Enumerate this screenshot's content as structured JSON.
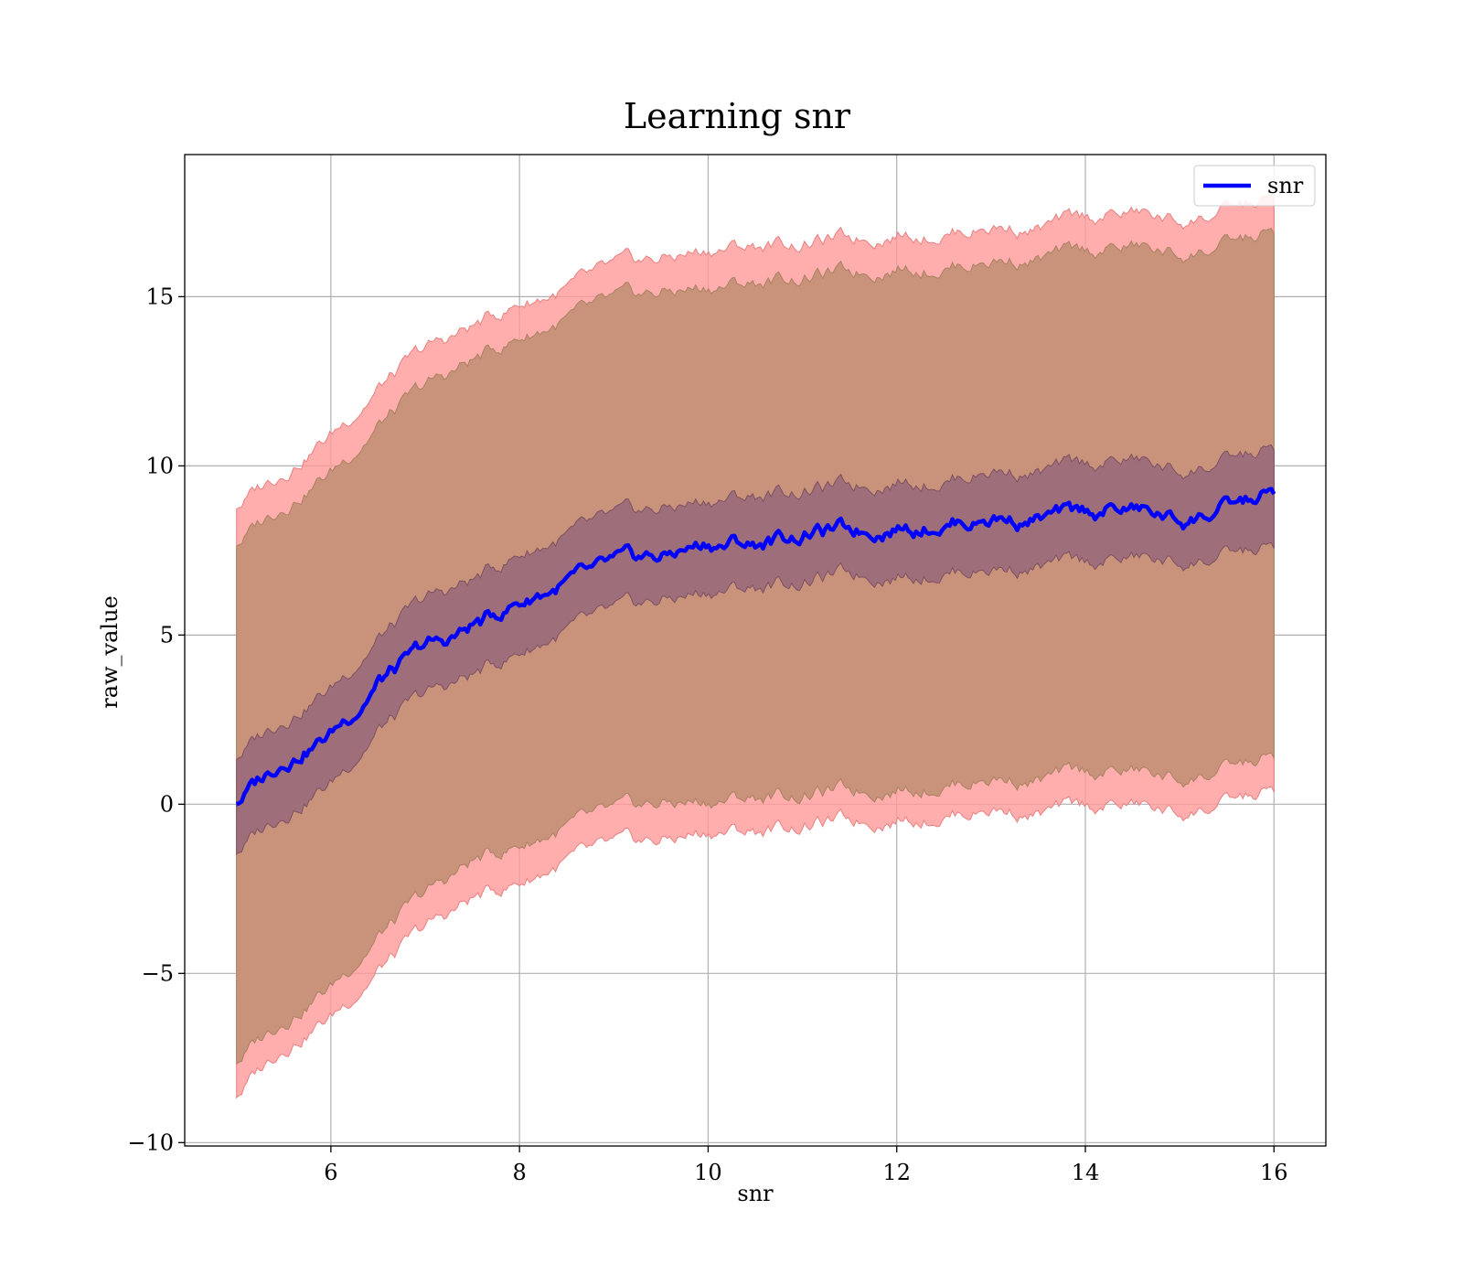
{
  "chart_data": {
    "type": "area",
    "title": "Learning snr",
    "xlabel": "snr",
    "ylabel": "raw_value",
    "xlim": [
      4.45,
      16.55
    ],
    "ylim": [
      -10.1,
      19.2
    ],
    "xticks": [
      6,
      8,
      10,
      12,
      14,
      16
    ],
    "xtick_labels": [
      "6",
      "8",
      "10",
      "12",
      "14",
      "16"
    ],
    "yticks": [
      -10,
      -5,
      0,
      5,
      10,
      15
    ],
    "ytick_labels": [
      "−10",
      "−5",
      "0",
      "5",
      "10",
      "15"
    ],
    "grid": true,
    "legend": {
      "position": "top-right",
      "entries": [
        {
          "name": "snr",
          "color": "#0000ff"
        }
      ]
    },
    "colors": {
      "mean_line": "#0000ff",
      "outer_band": "#ff9999",
      "middle_band": "#c8937a",
      "inner_band": "#9e6e7a",
      "grid": "#b0b0b0"
    },
    "x": [
      5.0,
      5.5,
      6.0,
      6.5,
      7.0,
      7.5,
      8.0,
      8.5,
      9.0,
      9.5,
      10.0,
      10.5,
      11.0,
      11.5,
      12.0,
      12.5,
      13.0,
      13.5,
      14.0,
      14.5,
      15.0,
      15.5,
      16.0
    ],
    "series": [
      {
        "name": "snr",
        "kind": "line",
        "values": [
          0.1,
          1.3,
          2.1,
          3.6,
          4.6,
          5.2,
          6.0,
          6.5,
          7.0,
          7.3,
          7.7,
          7.7,
          8.0,
          8.1,
          8.2,
          8.3,
          8.5,
          8.4,
          8.6,
          8.7,
          8.4,
          8.7,
          9.2
        ]
      },
      {
        "kind": "band",
        "level": "outer",
        "lower": [
          -8.6,
          -7.1,
          -6.3,
          -4.9,
          -3.7,
          -2.8,
          -2.3,
          -1.7,
          -1.3,
          -1.1,
          -0.8,
          -0.8,
          -0.6,
          -0.5,
          -0.4,
          -0.3,
          -0.1,
          -0.3,
          -0.1,
          0.0,
          -0.3,
          0.0,
          0.4
        ],
        "upper": [
          8.8,
          9.9,
          10.9,
          12.3,
          13.4,
          14.1,
          14.8,
          15.2,
          15.8,
          16.1,
          16.4,
          16.5,
          16.6,
          16.7,
          16.9,
          16.9,
          17.1,
          17.0,
          17.3,
          17.5,
          17.2,
          17.5,
          17.9
        ]
      },
      {
        "kind": "band",
        "level": "middle",
        "lower": [
          -7.6,
          -6.3,
          -5.4,
          -3.9,
          -2.7,
          -1.7,
          -1.2,
          -0.7,
          -0.3,
          0.0,
          0.1,
          0.2,
          0.3,
          0.4,
          0.5,
          0.6,
          0.8,
          0.7,
          0.9,
          1.0,
          0.7,
          1.0,
          1.4
        ],
        "upper": [
          7.7,
          8.9,
          9.8,
          11.2,
          12.3,
          13.1,
          13.8,
          14.3,
          14.8,
          15.1,
          15.3,
          15.4,
          15.6,
          15.7,
          15.9,
          15.9,
          16.1,
          16.1,
          16.3,
          16.5,
          16.2,
          16.5,
          16.9
        ]
      },
      {
        "kind": "band",
        "level": "inner",
        "lower": [
          -1.4,
          -0.2,
          0.6,
          2.2,
          3.2,
          3.8,
          4.5,
          5.1,
          5.6,
          6.0,
          6.3,
          6.4,
          6.6,
          6.8,
          6.8,
          6.9,
          7.0,
          7.0,
          7.1,
          7.3,
          7.1,
          7.3,
          7.6
        ],
        "upper": [
          1.4,
          2.6,
          3.4,
          4.9,
          6.0,
          6.6,
          7.4,
          7.9,
          8.4,
          8.7,
          9.0,
          9.1,
          9.3,
          9.4,
          9.6,
          9.6,
          9.9,
          9.8,
          10.0,
          10.2,
          9.8,
          10.1,
          10.5
        ]
      }
    ]
  }
}
